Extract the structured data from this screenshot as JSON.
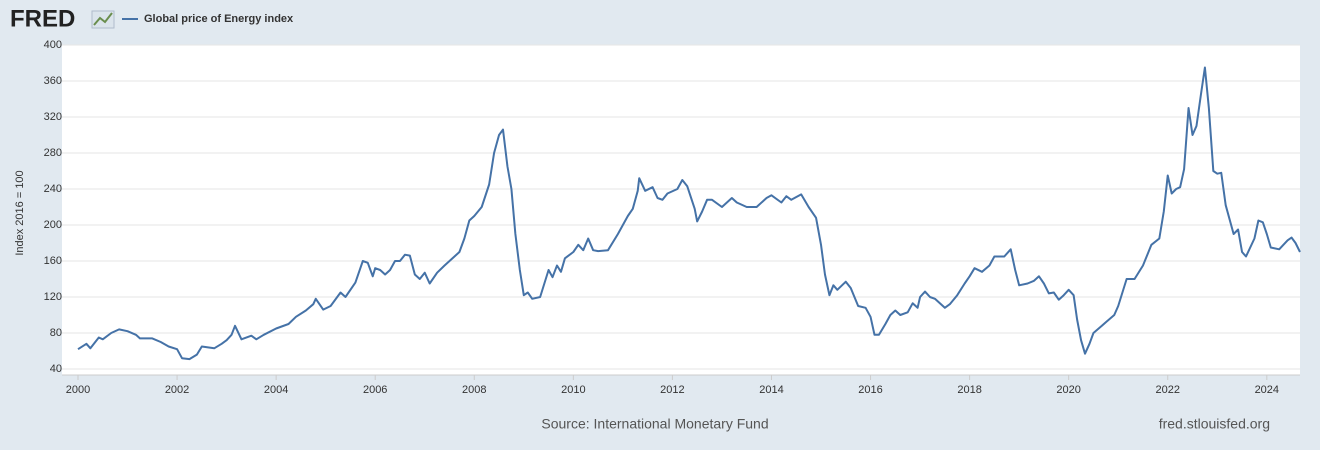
{
  "header": {
    "logo": "FRED"
  },
  "chart_data": {
    "type": "line",
    "ylabel": "Index 2016 = 100",
    "x": [
      2000.0,
      2000.17,
      2000.25,
      2000.42,
      2000.5,
      2000.67,
      2000.83,
      2001.0,
      2001.17,
      2001.25,
      2001.5,
      2001.67,
      2001.83,
      2002.0,
      2002.1,
      2002.25,
      2002.4,
      2002.5,
      2002.75,
      2002.9,
      2003.0,
      2003.1,
      2003.17,
      2003.3,
      2003.5,
      2003.6,
      2003.75,
      2004.0,
      2004.25,
      2004.4,
      2004.6,
      2004.75,
      2004.8,
      2004.95,
      2005.1,
      2005.3,
      2005.4,
      2005.6,
      2005.7,
      2005.75,
      2005.85,
      2005.95,
      2006.0,
      2006.1,
      2006.2,
      2006.3,
      2006.4,
      2006.5,
      2006.6,
      2006.7,
      2006.8,
      2006.9,
      2007.0,
      2007.1,
      2007.25,
      2007.4,
      2007.5,
      2007.6,
      2007.7,
      2007.8,
      2007.9,
      2008.0,
      2008.15,
      2008.3,
      2008.4,
      2008.5,
      2008.58,
      2008.67,
      2008.75,
      2008.83,
      2008.92,
      2009.0,
      2009.08,
      2009.17,
      2009.33,
      2009.5,
      2009.58,
      2009.67,
      2009.75,
      2009.83,
      2010.0,
      2010.1,
      2010.2,
      2010.3,
      2010.4,
      2010.5,
      2010.7,
      2010.9,
      2011.1,
      2011.2,
      2011.3,
      2011.33,
      2011.45,
      2011.6,
      2011.7,
      2011.8,
      2011.9,
      2012.1,
      2012.2,
      2012.3,
      2012.45,
      2012.5,
      2012.6,
      2012.7,
      2012.8,
      2013.0,
      2013.2,
      2013.3,
      2013.5,
      2013.7,
      2013.9,
      2014.0,
      2014.2,
      2014.3,
      2014.4,
      2014.6,
      2014.75,
      2014.9,
      2015.0,
      2015.08,
      2015.17,
      2015.25,
      2015.33,
      2015.5,
      2015.6,
      2015.75,
      2015.9,
      2016.0,
      2016.08,
      2016.17,
      2016.3,
      2016.4,
      2016.5,
      2016.6,
      2016.75,
      2016.85,
      2016.95,
      2017.0,
      2017.1,
      2017.2,
      2017.3,
      2017.5,
      2017.6,
      2017.75,
      2017.9,
      2018.0,
      2018.1,
      2018.25,
      2018.4,
      2018.5,
      2018.7,
      2018.83,
      2018.92,
      2019.0,
      2019.17,
      2019.3,
      2019.4,
      2019.5,
      2019.6,
      2019.7,
      2019.8,
      2019.9,
      2020.0,
      2020.1,
      2020.17,
      2020.25,
      2020.33,
      2020.42,
      2020.5,
      2020.67,
      2020.75,
      2020.92,
      2021.0,
      2021.17,
      2021.33,
      2021.5,
      2021.67,
      2021.83,
      2021.92,
      2022.0,
      2022.08,
      2022.17,
      2022.25,
      2022.33,
      2022.42,
      2022.5,
      2022.58,
      2022.67,
      2022.75,
      2022.83,
      2022.92,
      2023.0,
      2023.08,
      2023.17,
      2023.33,
      2023.42,
      2023.5,
      2023.58,
      2023.75,
      2023.83,
      2023.92,
      2024.0,
      2024.08,
      2024.25,
      2024.42,
      2024.5,
      2024.58,
      2024.67
    ],
    "series": [
      {
        "name": "Global price of Energy index",
        "color": "#4572a7",
        "values": [
          62,
          68,
          63,
          75,
          73,
          80,
          84,
          82,
          78,
          74,
          74,
          70,
          65,
          62,
          52,
          51,
          56,
          65,
          63,
          68,
          72,
          78,
          88,
          73,
          77,
          73,
          78,
          85,
          90,
          98,
          105,
          112,
          118,
          106,
          110,
          125,
          120,
          136,
          152,
          160,
          158,
          143,
          152,
          150,
          145,
          150,
          160,
          160,
          167,
          166,
          145,
          140,
          147,
          135,
          147,
          155,
          160,
          165,
          170,
          185,
          205,
          210,
          220,
          245,
          280,
          300,
          306,
          265,
          240,
          190,
          150,
          122,
          125,
          118,
          120,
          150,
          142,
          155,
          148,
          163,
          170,
          178,
          172,
          185,
          172,
          171,
          172,
          190,
          210,
          218,
          238,
          252,
          238,
          242,
          230,
          228,
          235,
          240,
          250,
          243,
          218,
          204,
          215,
          228,
          228,
          220,
          230,
          225,
          220,
          220,
          230,
          233,
          225,
          232,
          228,
          234,
          220,
          208,
          178,
          145,
          122,
          133,
          128,
          137,
          130,
          110,
          108,
          98,
          78,
          78,
          90,
          100,
          105,
          100,
          103,
          113,
          108,
          120,
          126,
          120,
          118,
          108,
          112,
          122,
          135,
          143,
          152,
          148,
          155,
          165,
          165,
          173,
          150,
          133,
          135,
          138,
          143,
          135,
          124,
          125,
          117,
          122,
          128,
          122,
          95,
          72,
          57,
          68,
          80,
          88,
          92,
          100,
          110,
          140,
          140,
          155,
          178,
          185,
          215,
          255,
          235,
          240,
          242,
          262,
          330,
          300,
          310,
          345,
          375,
          330,
          260,
          257,
          258,
          222,
          190,
          195,
          170,
          165,
          185,
          205,
          203,
          190,
          175,
          173,
          183,
          186,
          180,
          170
        ]
      }
    ],
    "xlim": [
      2000,
      2024.67
    ],
    "xticks": [
      2000,
      2002,
      2004,
      2006,
      2008,
      2010,
      2012,
      2014,
      2016,
      2018,
      2020,
      2022,
      2024
    ],
    "ylim": [
      40,
      400
    ],
    "yticks": [
      40,
      80,
      120,
      160,
      200,
      240,
      280,
      320,
      360,
      400
    ],
    "grid": true
  },
  "footer": {
    "source": "Source: International Monetary Fund",
    "site": "fred.stlouisfed.org"
  }
}
